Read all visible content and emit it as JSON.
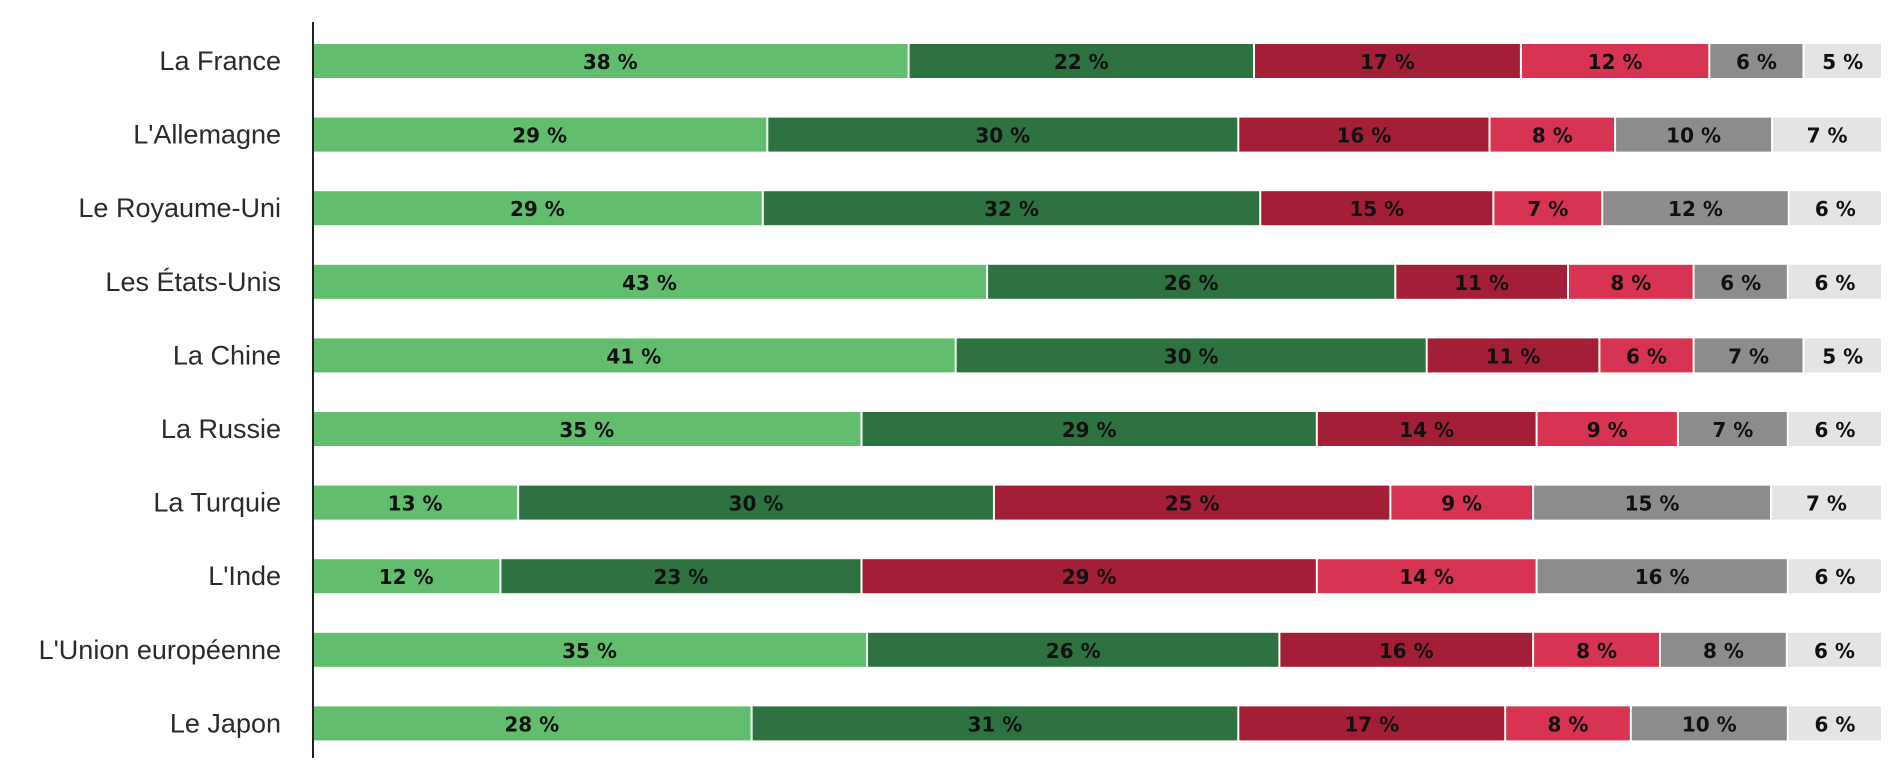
{
  "chart_data": {
    "type": "bar",
    "orientation": "horizontal",
    "stacked": true,
    "normalized": true,
    "legend": "none",
    "grid": false,
    "title": "",
    "xlabel": "",
    "ylabel": "",
    "xlim": [
      0,
      100
    ],
    "value_suffix": " %",
    "categories": [
      "La France",
      "L'Allemagne",
      "Le Royaume-Uni",
      "Les États-Unis",
      "La Chine",
      "La Russie",
      "La Turquie",
      "L'Inde",
      "L'Union européenne",
      "Le Japon"
    ],
    "series": [
      {
        "color": "#62bd6e",
        "values": [
          38,
          29,
          29,
          43,
          41,
          35,
          13,
          12,
          35,
          28
        ]
      },
      {
        "color": "#2f7242",
        "values": [
          22,
          30,
          32,
          26,
          30,
          29,
          30,
          23,
          26,
          31
        ]
      },
      {
        "color": "#a31f38",
        "values": [
          17,
          16,
          15,
          11,
          11,
          14,
          25,
          29,
          16,
          17
        ]
      },
      {
        "color": "#d73352",
        "values": [
          12,
          8,
          7,
          8,
          6,
          9,
          9,
          14,
          8,
          8
        ]
      },
      {
        "color": "#8e8b8b",
        "values": [
          6,
          10,
          12,
          6,
          7,
          7,
          15,
          16,
          8,
          10
        ]
      },
      {
        "color": "#e4e4e4",
        "values": [
          5,
          7,
          6,
          6,
          5,
          6,
          7,
          6,
          6,
          6
        ]
      }
    ]
  }
}
